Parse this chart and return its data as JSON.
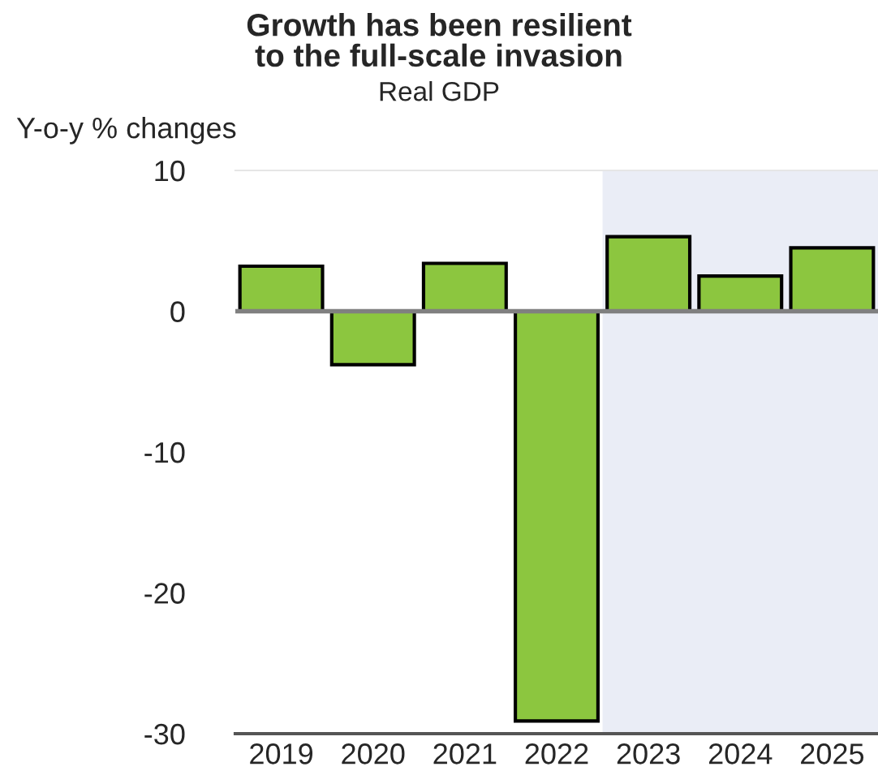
{
  "chart_data": {
    "type": "bar",
    "title": "Growth has been resilient\nto the full-scale invasion",
    "subtitle": "Real GDP",
    "ylabel": "Y-o-y % changes",
    "categories": [
      "2019",
      "2020",
      "2021",
      "2022",
      "2023",
      "2024",
      "2025"
    ],
    "values": [
      3.2,
      -3.8,
      3.4,
      -29.1,
      5.3,
      2.5,
      4.5
    ],
    "color": "#8cc63f",
    "ylim": [
      -30,
      10
    ],
    "yticks": [
      -30,
      -20,
      -10,
      0,
      10
    ],
    "ref_lines": [
      {
        "axis": "y",
        "value": 0,
        "color": "#808080"
      }
    ],
    "bands": [
      {
        "axis": "x",
        "from": "2023",
        "to": "2025",
        "color": "#eaedf6"
      }
    ],
    "grid": false
  }
}
